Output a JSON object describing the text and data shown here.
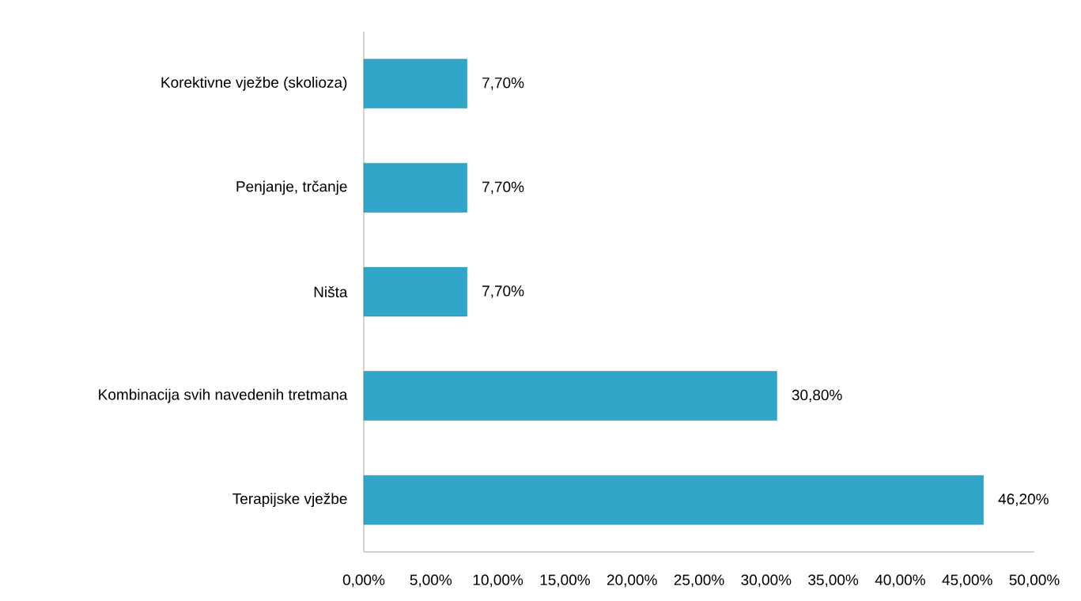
{
  "chart_data": {
    "type": "bar",
    "orientation": "horizontal",
    "categories": [
      "Korektivne vježbe (skolioza)",
      "Penjanje, trčanje",
      "Ništa",
      "Kombinacija svih navedenih tretmana",
      "Terapijske vježbe"
    ],
    "values": [
      7.7,
      7.7,
      7.7,
      30.8,
      46.2
    ],
    "value_labels": [
      "7,70%",
      "7,70%",
      "7,70%",
      "30,80%",
      "46,20%"
    ],
    "color": "#31a6c8",
    "xlim": [
      0,
      50
    ],
    "xticks": [
      {
        "value": 0,
        "label": "0,00%"
      },
      {
        "value": 5,
        "label": "5,00%"
      },
      {
        "value": 10,
        "label": "10,00%"
      },
      {
        "value": 15,
        "label": "15,00%"
      },
      {
        "value": 20,
        "label": "20,00%"
      },
      {
        "value": 25,
        "label": "25,00%"
      },
      {
        "value": 30,
        "label": "30,00%"
      },
      {
        "value": 35,
        "label": "35,00%"
      },
      {
        "value": 40,
        "label": "40,00%"
      },
      {
        "value": 45,
        "label": "45,00%"
      },
      {
        "value": 50,
        "label": "50,00%"
      }
    ]
  }
}
